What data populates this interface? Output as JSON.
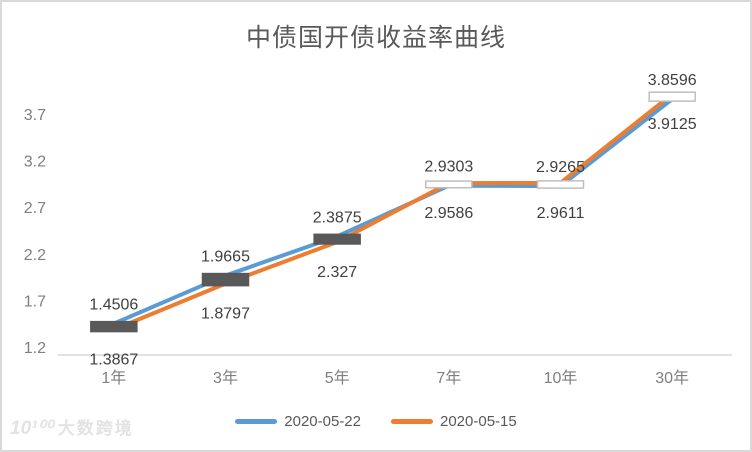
{
  "title": "中债国开债收益率曲线",
  "legend": {
    "items": [
      {
        "label": "2020-05-22",
        "color": "#5B9BD5"
      },
      {
        "label": "2020-05-15",
        "color": "#ED7D31"
      }
    ]
  },
  "watermark": {
    "logo": "10¹⁰⁰",
    "text": "大数跨境"
  },
  "colors": {
    "series1": "#5B9BD5",
    "series2": "#ED7D31",
    "axis_line": "#D9D9D9",
    "axis_text": "#7F7F7F",
    "data_label": "#404040",
    "down_bar_fill": "#595959",
    "up_bar_fill": "#FFFFFF",
    "up_bar_border": "#BFBFBF",
    "title_text": "#595959"
  },
  "chart_data": {
    "type": "line",
    "title": "中债国开债收益率曲线",
    "categories": [
      "1年",
      "3年",
      "5年",
      "7年",
      "10年",
      "30年"
    ],
    "series": [
      {
        "name": "2020-05-22",
        "color": "#5B9BD5",
        "values": [
          1.4506,
          1.9665,
          2.3875,
          2.9303,
          2.9265,
          3.8596
        ],
        "label_position": "above"
      },
      {
        "name": "2020-05-15",
        "color": "#ED7D31",
        "values": [
          1.3867,
          1.8797,
          2.327,
          2.9586,
          2.9611,
          3.9125
        ],
        "label_position": "below"
      }
    ],
    "y_ticks": [
      1.2,
      1.7,
      2.2,
      2.7,
      3.2,
      3.7
    ],
    "ylim": [
      1.11,
      4.0
    ],
    "grid": false,
    "legend_position": "bottom",
    "updown_bars": true,
    "xlabel": "",
    "ylabel": ""
  }
}
